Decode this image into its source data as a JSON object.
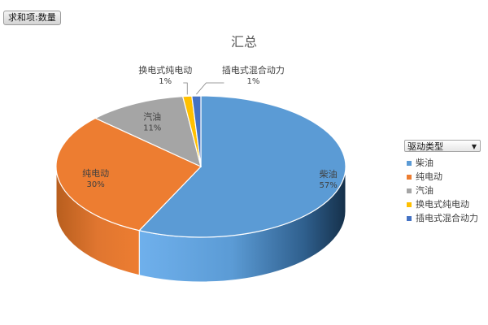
{
  "pivot": {
    "value_field": "求和项:数量"
  },
  "legend": {
    "filter_label": "驱动类型",
    "dropdown_icon": "chevron-down-icon"
  },
  "chart_data": {
    "type": "pie",
    "title": "汇总",
    "style": "3d-pie",
    "legend_placement": "right",
    "slices": [
      {
        "label": "柴油",
        "value": 57,
        "percent_label": "57%",
        "color": "#5b9bd5"
      },
      {
        "label": "纯电动",
        "value": 30,
        "percent_label": "30%",
        "color": "#ed7d31"
      },
      {
        "label": "汽油",
        "value": 11,
        "percent_label": "11%",
        "color": "#a5a5a5"
      },
      {
        "label": "换电式纯电动",
        "value": 1,
        "percent_label": "1%",
        "color": "#ffc000"
      },
      {
        "label": "插电式混合动力",
        "value": 1,
        "percent_label": "1%",
        "color": "#4472c4"
      }
    ]
  }
}
